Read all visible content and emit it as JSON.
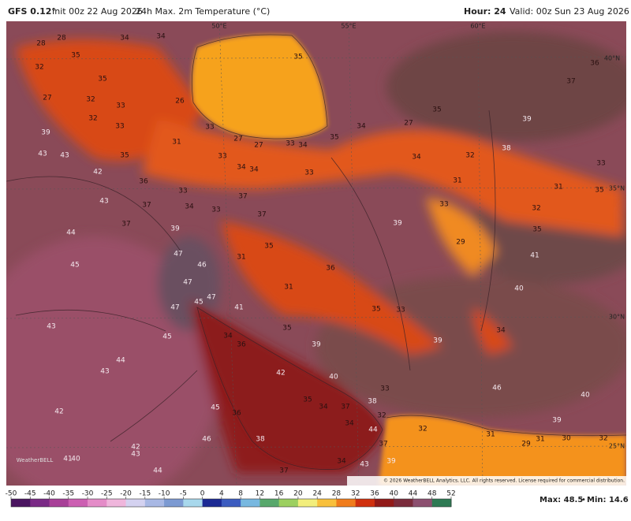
{
  "header": {
    "model": "GFS 0.12°",
    "init": "Init 00z 22 Aug 2026",
    "product": "24h Max. 2m Temperature (°C)",
    "hour": "Hour: 24",
    "valid": "Valid: 00z Sun 23 Aug 2026"
  },
  "map": {
    "gridlabels": [
      "50°E",
      "55°E",
      "60°E",
      "40°N",
      "35°N",
      "30°N",
      "25°N"
    ],
    "labels": [
      28,
      28,
      34,
      34,
      32,
      35,
      35,
      27,
      32,
      33,
      26,
      32,
      33,
      33,
      39,
      31,
      27,
      27,
      33,
      34,
      35,
      34,
      27,
      35,
      39,
      37,
      36,
      35,
      43,
      43,
      35,
      33,
      34,
      34,
      33,
      34,
      32,
      38,
      33,
      42,
      36,
      31,
      31,
      35,
      43,
      37,
      33,
      34,
      33,
      37,
      37,
      33,
      32,
      39,
      37,
      39,
      44,
      35,
      29,
      35,
      47,
      31,
      41,
      45,
      46,
      36,
      47,
      31,
      40,
      41,
      47,
      45,
      47,
      35,
      33,
      34,
      43,
      35,
      45,
      34,
      36,
      39,
      39,
      44,
      43,
      42,
      40,
      33,
      46,
      40,
      35,
      34,
      37,
      38,
      42,
      45,
      36,
      34,
      32,
      39,
      44,
      32,
      31,
      31,
      46,
      38,
      42,
      43,
      37,
      29,
      30,
      32,
      40,
      41,
      34,
      43,
      39,
      44,
      37
    ],
    "logo": "WeatherBELL",
    "copyright": "© 2026 WeatherBELL Analytics, LLC. All rights reserved. License required for commercial distribution."
  },
  "colorbar": {
    "ticks": [
      -50,
      -45,
      -40,
      -35,
      -30,
      -25,
      -20,
      -15,
      -10,
      -5,
      0,
      4,
      8,
      12,
      16,
      20,
      24,
      28,
      32,
      36,
      40,
      44,
      48,
      52
    ],
    "colors": [
      "#4a1460",
      "#7a2a86",
      "#a84098",
      "#cc5fb2",
      "#e48cc8",
      "#efb6dc",
      "#d4d2f0",
      "#a8b8e4",
      "#7c9ad2",
      "#a8d8ec",
      "#1c2a94",
      "#3c5cc0",
      "#78b8e0",
      "#58a86c",
      "#9cd060",
      "#f2ee7c",
      "#f8c03c",
      "#f07c1c",
      "#d0300e",
      "#921a18",
      "#7a2c3c",
      "#8c5070",
      "#2e7a54"
    ]
  },
  "stats": {
    "max": "Max: 48.5",
    "min": "Min: 14.6"
  }
}
